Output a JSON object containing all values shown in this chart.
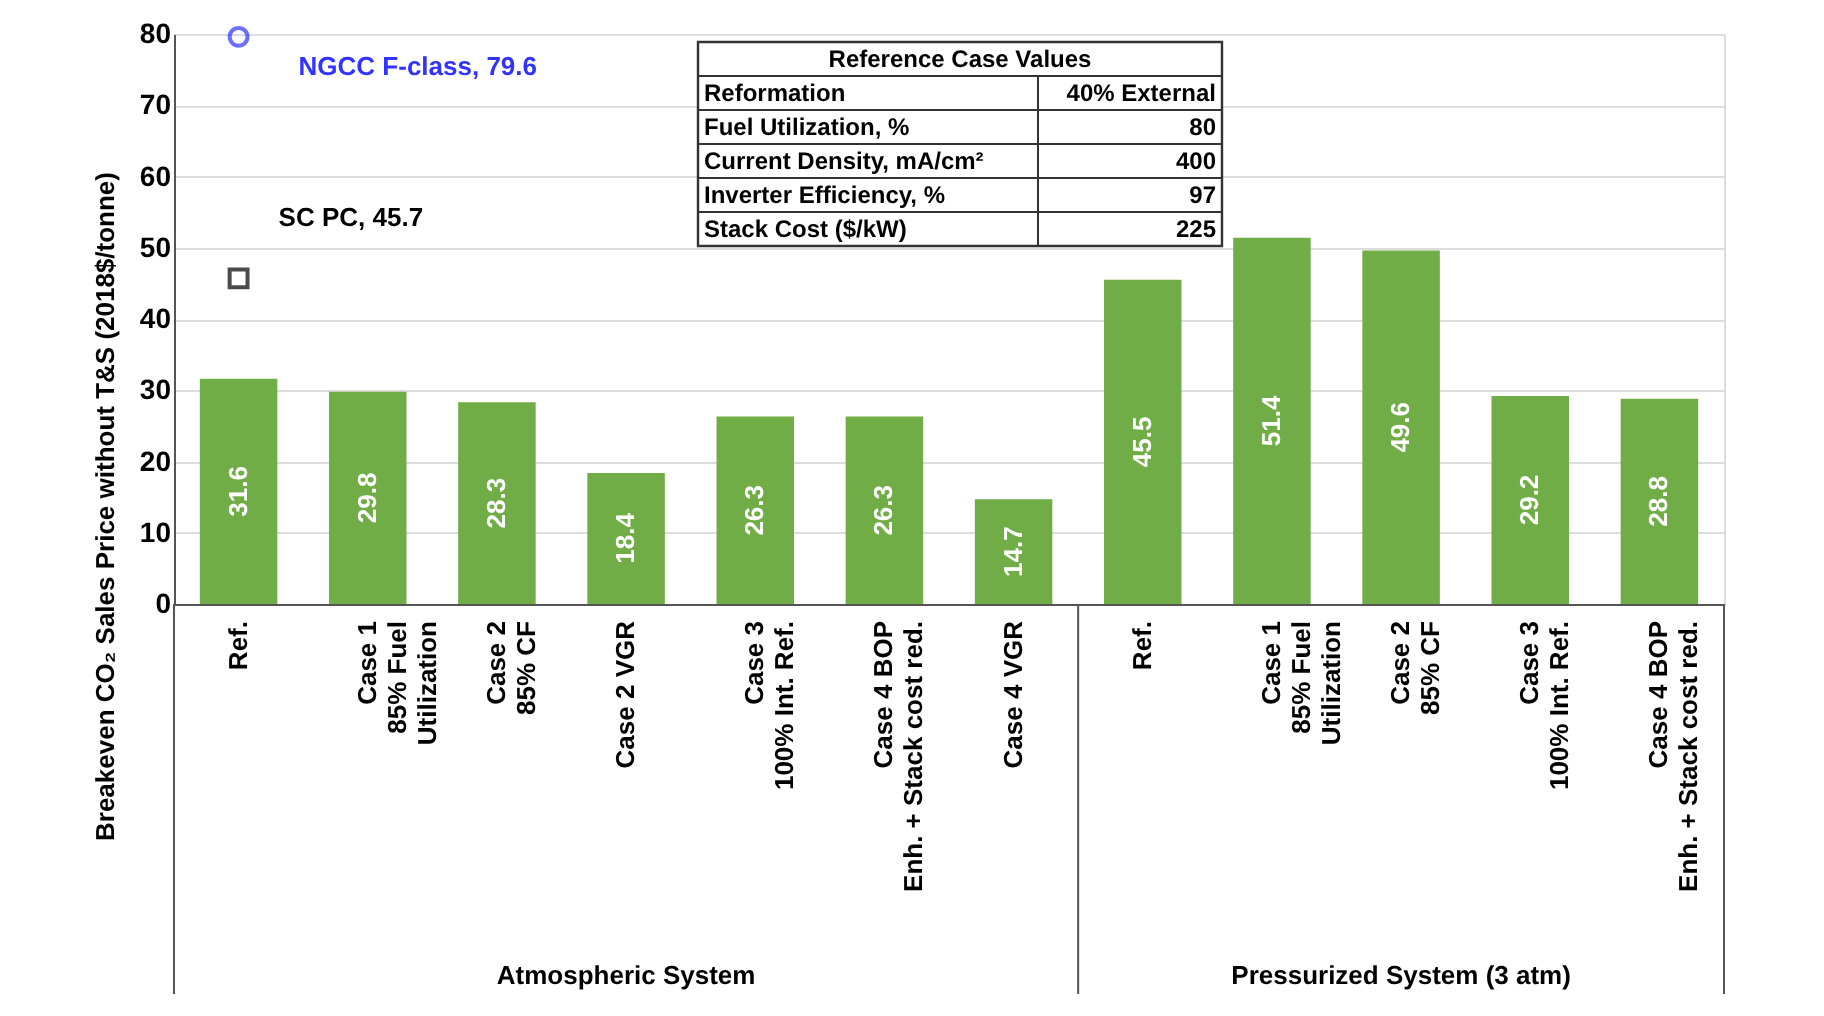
{
  "chart_data": {
    "type": "bar",
    "ylabel": "Breakeven CO₂ Sales Price without T&S (2018$/tonne)",
    "categories": [
      "Ref.",
      "Case 1\n85% Fuel\nUtilization",
      "Case 2\n85% CF",
      "Case 2 VGR",
      "Case 3\n100% Int. Ref.",
      "Case 4 BOP\nEnh. + Stack cost red.",
      "Case 4 VGR",
      "Ref.",
      "Case 1\n85% Fuel\nUtilization",
      "Case 2\n85% CF",
      "Case 3\n100% Int. Ref.",
      "Case 4 BOP\nEnh. + Stack cost red."
    ],
    "series": [
      {
        "color": "#70ad47",
        "values": [
          31.6,
          29.8,
          28.3,
          18.4,
          26.3,
          26.3,
          14.7,
          45.5,
          51.4,
          49.6,
          29.2,
          28.8
        ],
        "value_labels": [
          "31.6",
          "29.8",
          "28.3",
          "18.4",
          "26.3",
          "26.3",
          "14.7",
          "45.5",
          "51.4",
          "49.6",
          "29.2",
          "28.8"
        ]
      },
      {
        "type": "scatter",
        "marker": "circle",
        "color": "#3333ff",
        "x": [
          "Ref."
        ],
        "values": [
          79.6
        ]
      },
      {
        "type": "scatter",
        "marker": "square",
        "color": "#000000",
        "x": [
          "Ref."
        ],
        "values": [
          45.7
        ]
      }
    ],
    "ylim": [
      0,
      80
    ],
    "yticks": [
      0,
      10,
      20,
      30,
      40,
      50,
      60,
      70,
      80
    ],
    "grid": "y",
    "annotations": [
      {
        "text": "NGCC F-class, 79.6",
        "x": "Ref.",
        "y": 79.6
      },
      {
        "text": "SC PC, 45.7",
        "x": "Ref.",
        "y": 45.7
      },
      "Atmospheric System",
      "Pressurized System (3 atm)",
      "Reference Case Values",
      "Reformation",
      "40%  External",
      "Fuel Utilization, %",
      "80",
      "Current Density, mA/cm²",
      "400",
      "Inverter Efficiency, %",
      "97",
      "Stack Cost ($/kW)",
      "225"
    ]
  }
}
